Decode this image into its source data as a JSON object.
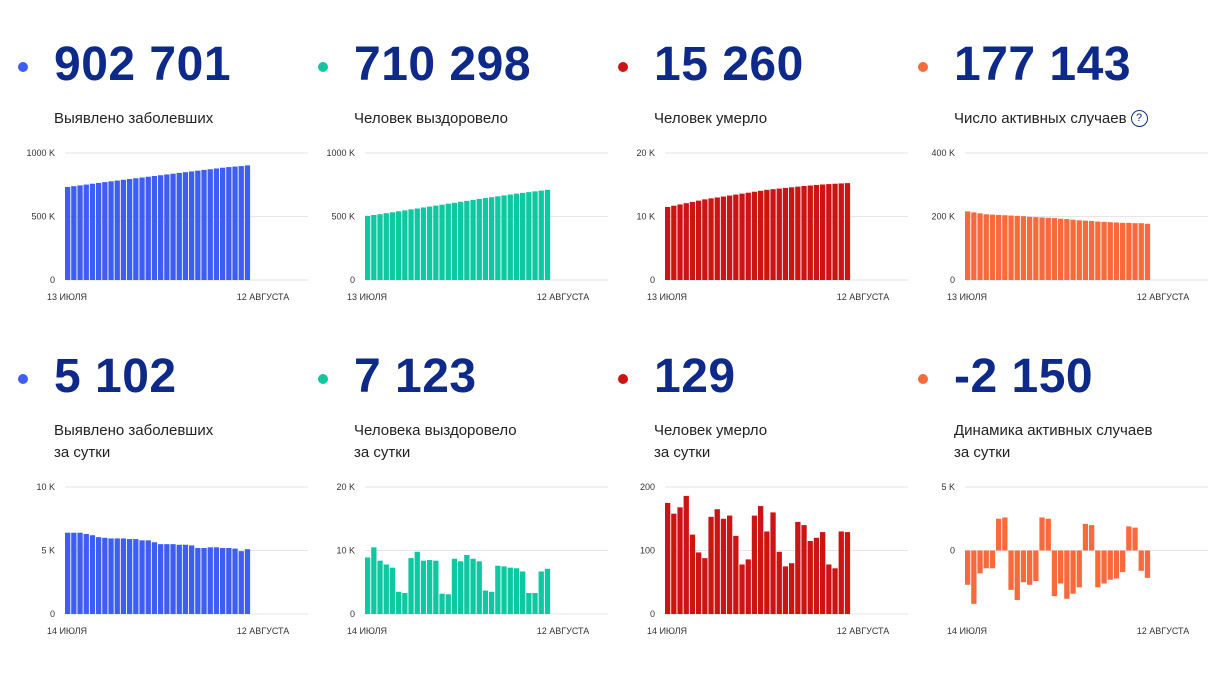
{
  "stats": [
    {
      "value": "902 701",
      "label": "Выявлено заболевших",
      "color": "#3d5ef0"
    },
    {
      "value": "710 298",
      "label": "Человек выздоровело",
      "color": "#0ec8a2"
    },
    {
      "value": "15 260",
      "label": "Человек умерло",
      "color": "#cc1414"
    },
    {
      "value": "177 143",
      "label": "Число активных случаев",
      "help": "?",
      "color": "#f86a3c"
    },
    {
      "value": "5 102",
      "label": "Выявлено заболевших",
      "label2": "за сутки",
      "color": "#3d5ef0"
    },
    {
      "value": "7 123",
      "label": "Человека выздоровело",
      "label2": "за сутки",
      "color": "#0ec8a2"
    },
    {
      "value": "129",
      "label": "Человек умерло",
      "label2": "за сутки",
      "color": "#cc1414"
    },
    {
      "value": "-2 150",
      "label": "Динамика активных случаев",
      "label2": "за сутки",
      "color": "#f86a3c"
    }
  ],
  "chart_data": [
    {
      "type": "bar",
      "color": "#3d5ef0",
      "ylim": [
        0,
        1000000
      ],
      "ticks": [
        0,
        500000,
        1000000
      ],
      "tick_labels": [
        "0",
        "500 K",
        "1000 K"
      ],
      "x_start": "13 ИЮЛЯ",
      "x_end": "12 АВГУСТА",
      "values": [
        733000,
        739000,
        745000,
        751000,
        758000,
        764000,
        771000,
        777000,
        783000,
        789000,
        795000,
        801000,
        807000,
        813000,
        819000,
        825000,
        831000,
        837000,
        843000,
        849000,
        855000,
        861000,
        867000,
        872000,
        878000,
        884000,
        889000,
        893000,
        897000,
        902701
      ]
    },
    {
      "type": "bar",
      "color": "#0ec8a2",
      "ylim": [
        0,
        1000000
      ],
      "ticks": [
        0,
        500000,
        1000000
      ],
      "tick_labels": [
        "0",
        "500 K",
        "1000 K"
      ],
      "x_start": "13 ИЮЛЯ",
      "x_end": "12 АВГУСТА",
      "values": [
        505000,
        512000,
        518000,
        526000,
        533000,
        541000,
        548000,
        556000,
        563000,
        571000,
        578000,
        586000,
        593000,
        601000,
        608000,
        616000,
        623000,
        631000,
        638000,
        645000,
        652000,
        659000,
        666000,
        673000,
        680000,
        686000,
        692000,
        698000,
        704000,
        710298
      ]
    },
    {
      "type": "bar",
      "color": "#cc1414",
      "ylim": [
        0,
        20000
      ],
      "ticks": [
        0,
        10000,
        20000
      ],
      "tick_labels": [
        "0",
        "10 K",
        "20 K"
      ],
      "x_start": "13 ИЮЛЯ",
      "x_end": "12 АВГУСТА",
      "values": [
        11500,
        11700,
        11900,
        12100,
        12300,
        12500,
        12700,
        12850,
        13000,
        13150,
        13300,
        13450,
        13600,
        13750,
        13900,
        14050,
        14200,
        14300,
        14400,
        14500,
        14600,
        14700,
        14800,
        14880,
        14960,
        15040,
        15100,
        15160,
        15210,
        15260
      ]
    },
    {
      "type": "bar",
      "color": "#f86a3c",
      "ylim": [
        0,
        400000
      ],
      "ticks": [
        0,
        200000,
        400000
      ],
      "tick_labels": [
        "0",
        "200 K",
        "400 K"
      ],
      "x_start": "13 ИЮЛЯ",
      "x_end": "12 АВГУСТА",
      "values": [
        216000,
        213000,
        210000,
        207000,
        206000,
        205000,
        204000,
        203000,
        202000,
        201000,
        199000,
        198000,
        197000,
        196000,
        195000,
        193000,
        192000,
        190000,
        188000,
        187000,
        186000,
        184000,
        183000,
        182000,
        181000,
        180000,
        180000,
        179000,
        179000,
        177143
      ]
    },
    {
      "type": "bar",
      "color": "#3d5ef0",
      "ylim": [
        0,
        10000
      ],
      "ticks": [
        0,
        5000,
        10000
      ],
      "tick_labels": [
        "0",
        "5 K",
        "10 K"
      ],
      "x_start": "14 ИЮЛЯ",
      "x_end": "12 АВГУСТА",
      "values": [
        6400,
        6400,
        6400,
        6300,
        6200,
        6050,
        6000,
        5950,
        5950,
        5950,
        5900,
        5900,
        5800,
        5800,
        5650,
        5500,
        5500,
        5500,
        5450,
        5450,
        5400,
        5200,
        5200,
        5250,
        5250,
        5200,
        5200,
        5150,
        4950,
        5102
      ]
    },
    {
      "type": "bar",
      "color": "#0ec8a2",
      "ylim": [
        0,
        20000
      ],
      "ticks": [
        0,
        10000,
        20000
      ],
      "tick_labels": [
        "0",
        "10 K",
        "20 K"
      ],
      "x_start": "14 ИЮЛЯ",
      "x_end": "12 АВГУСТА",
      "values": [
        8900,
        10500,
        8400,
        7800,
        7300,
        3500,
        3300,
        8800,
        9800,
        8400,
        8500,
        8400,
        3200,
        3100,
        8700,
        8300,
        9300,
        8700,
        8300,
        3700,
        3500,
        7600,
        7500,
        7300,
        7200,
        6700,
        3300,
        3300,
        6700,
        7123
      ]
    },
    {
      "type": "bar",
      "color": "#cc1414",
      "ylim": [
        0,
        200
      ],
      "ticks": [
        0,
        100,
        200
      ],
      "tick_labels": [
        "0",
        "100",
        "200"
      ],
      "x_start": "14 ИЮЛЯ",
      "x_end": "12 АВГУСТА",
      "values": [
        175,
        158,
        168,
        186,
        125,
        97,
        88,
        153,
        165,
        150,
        155,
        123,
        78,
        86,
        155,
        170,
        130,
        160,
        98,
        75,
        80,
        145,
        140,
        115,
        120,
        129,
        78,
        72,
        130,
        129
      ]
    },
    {
      "type": "bar",
      "color": "#f86a3c",
      "ylim": [
        -5000,
        5000
      ],
      "ticks": [
        0,
        5000
      ],
      "tick_labels": [
        "0",
        "5 K"
      ],
      "x_start": "14 ИЮЛЯ",
      "x_end": "12 АВГУСТА",
      "values": [
        -2700,
        -4200,
        -1800,
        -1400,
        -1400,
        2500,
        2600,
        -3100,
        -3900,
        -2500,
        -2700,
        -2400,
        2600,
        2500,
        -3600,
        -2600,
        -3800,
        -3400,
        -2900,
        2100,
        2000,
        -2900,
        -2600,
        -2300,
        -2200,
        -1700,
        1900,
        1800,
        -1600,
        -2150
      ]
    }
  ]
}
